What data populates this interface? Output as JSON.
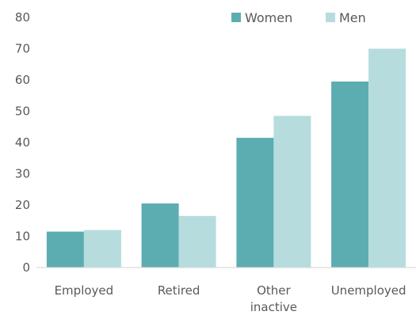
{
  "chart_data": {
    "type": "bar",
    "categories": [
      [
        "Employed"
      ],
      [
        "Retired"
      ],
      [
        "Other",
        "inactive"
      ],
      [
        "Unemployed"
      ]
    ],
    "series": [
      {
        "name": "Women",
        "color": "#5cadb1",
        "values": [
          11.5,
          20.5,
          41.5,
          59.5
        ]
      },
      {
        "name": "Men",
        "color": "#b6dcde",
        "values": [
          12,
          16.5,
          48.5,
          70
        ]
      }
    ],
    "ylim": [
      0,
      80
    ],
    "yticks": [
      0,
      10,
      20,
      30,
      40,
      50,
      60,
      70,
      80
    ],
    "grid": false,
    "legend": "top-right",
    "axis_color": "#d9d9d9"
  }
}
